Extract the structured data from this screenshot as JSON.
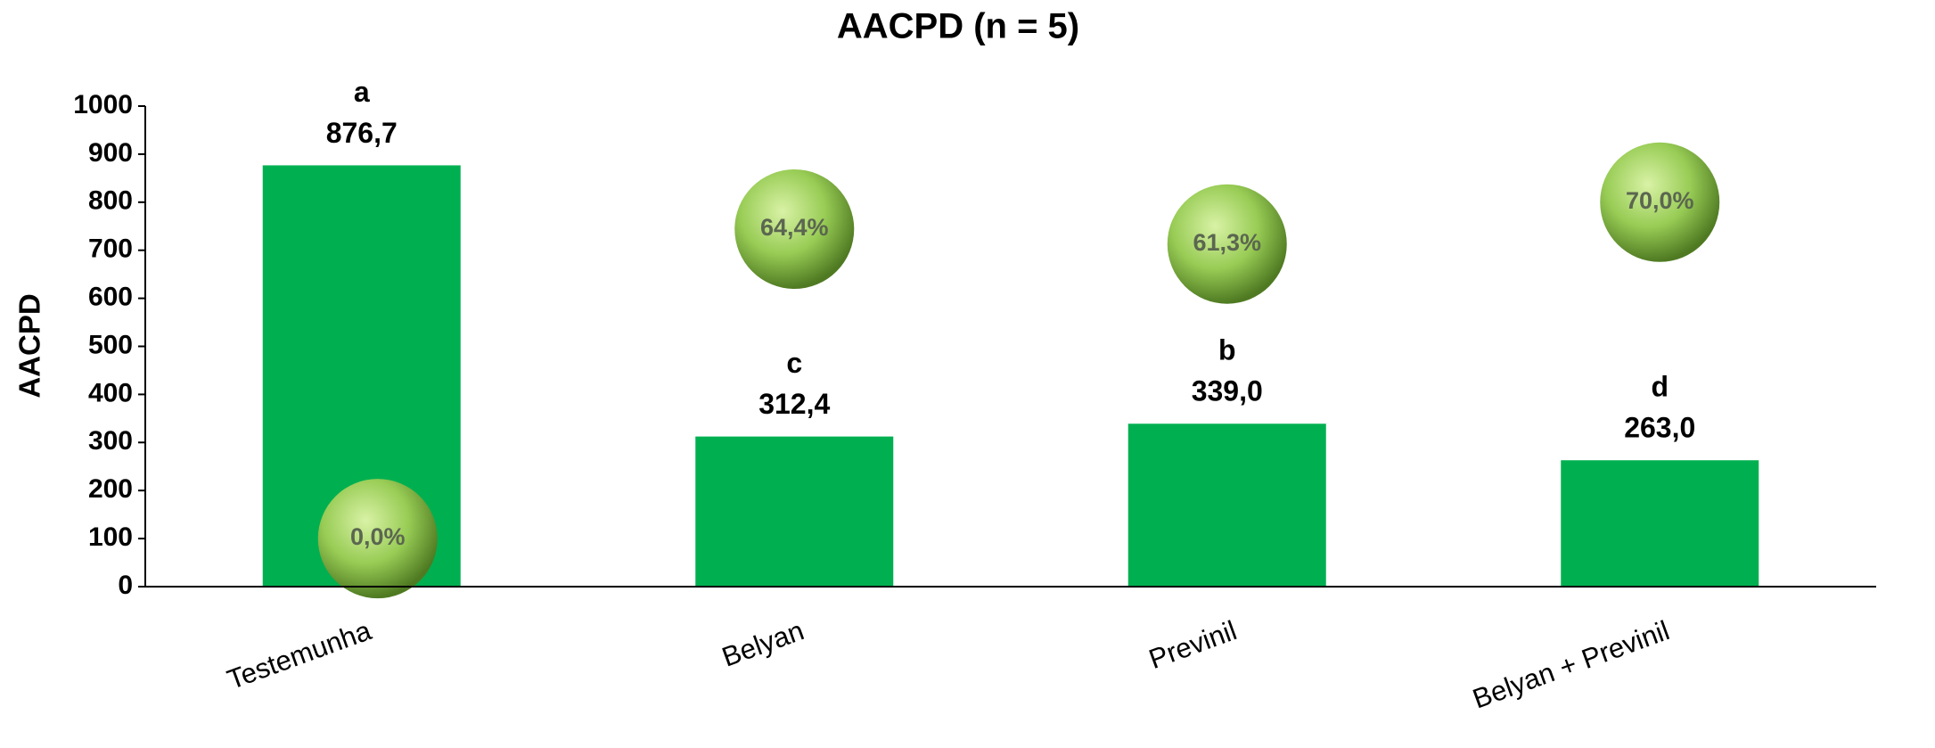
{
  "chart_data": {
    "type": "bar",
    "title": "AACPD (n = 5)",
    "y_label": "AACPD",
    "categories": [
      "Testemunha",
      "Belyan",
      "Previnil",
      "Belyan + Previnil"
    ],
    "values": [
      876.7,
      312.4,
      339.0,
      263.0
    ],
    "value_labels": [
      "876,7",
      "312,4",
      "339,0",
      "263,0"
    ],
    "letters": [
      "a",
      "c",
      "b",
      "d"
    ],
    "efficacy": [
      0.0,
      64.4,
      61.3,
      70.0
    ],
    "efficacy_labels": [
      "0,0%",
      "64,4%",
      "61,3%",
      "70,0%"
    ],
    "color": "#00b050",
    "ylim": [
      0,
      1000
    ],
    "yticks": [
      0,
      100,
      200,
      300,
      400,
      500,
      600,
      700,
      800,
      900,
      1000
    ],
    "grid": false
  }
}
